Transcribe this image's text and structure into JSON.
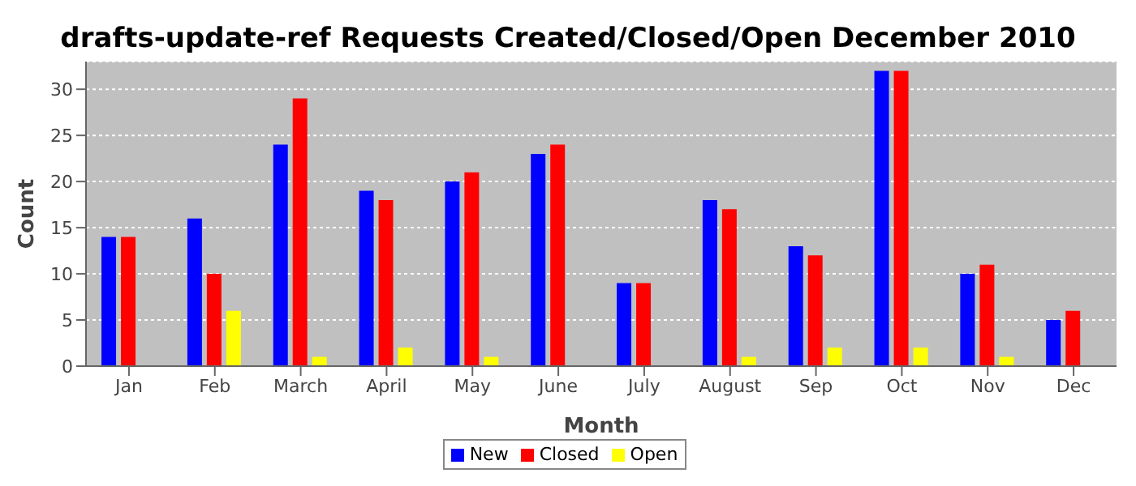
{
  "chart_data": {
    "type": "bar",
    "title": "drafts-update-ref Requests Created/Closed/Open December 2010",
    "xlabel": "Month",
    "ylabel": "Count",
    "categories": [
      "Jan",
      "Feb",
      "March",
      "April",
      "May",
      "June",
      "July",
      "August",
      "Sep",
      "Oct",
      "Nov",
      "Dec"
    ],
    "series": [
      {
        "name": "New",
        "color": "#0000ff",
        "values": [
          14,
          16,
          24,
          19,
          20,
          23,
          9,
          18,
          13,
          32,
          10,
          5
        ]
      },
      {
        "name": "Closed",
        "color": "#ff0000",
        "values": [
          14,
          10,
          29,
          18,
          21,
          24,
          9,
          17,
          12,
          32,
          11,
          6
        ]
      },
      {
        "name": "Open",
        "color": "#ffff00",
        "values": [
          0,
          6,
          1,
          2,
          1,
          0,
          0,
          1,
          2,
          2,
          1,
          0
        ]
      }
    ],
    "ylim": [
      0,
      33
    ],
    "yticks": [
      0,
      5,
      10,
      15,
      20,
      25,
      30
    ],
    "grid": "y",
    "legend": "bottom"
  }
}
